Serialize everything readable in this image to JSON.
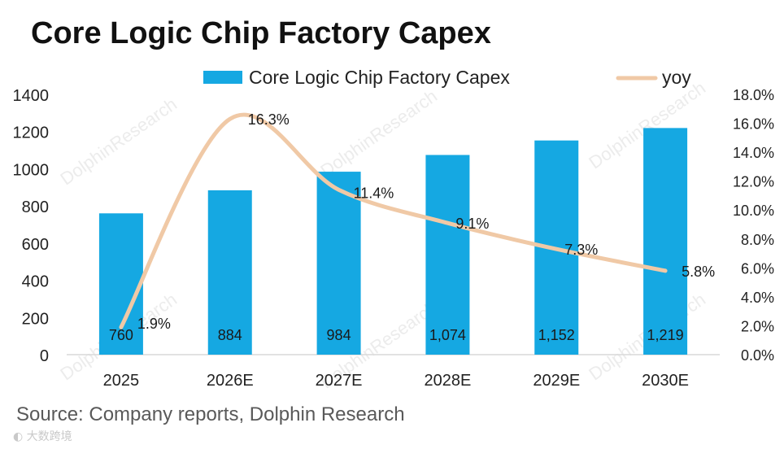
{
  "title": "Core Logic Chip Factory Capex",
  "source": "Source: Company reports, Dolphin Research",
  "watermark": {
    "text": "DolphinResearch",
    "logo": "大数跨境"
  },
  "colors": {
    "bar": "#15a8e2",
    "line": "#f0c9a6",
    "text": "#222222",
    "axis": "#d9d9d9"
  },
  "chart_data": {
    "type": "bar",
    "title": "Core Logic Chip Factory Capex",
    "categories": [
      "2025",
      "2026E",
      "2027E",
      "2028E",
      "2029E",
      "2030E"
    ],
    "series": [
      {
        "name": "Core Logic Chip Factory Capex",
        "type": "bar",
        "axis": "left",
        "values": [
          760,
          884,
          984,
          1074,
          1152,
          1219
        ],
        "labels": [
          "760",
          "884",
          "984",
          "1,074",
          "1,152",
          "1,219"
        ]
      },
      {
        "name": "yoy",
        "type": "line",
        "axis": "right",
        "values": [
          1.9,
          16.3,
          11.4,
          9.1,
          7.3,
          5.8
        ],
        "labels": [
          "1.9%",
          "16.3%",
          "11.4%",
          "9.1%",
          "7.3%",
          "5.8%"
        ]
      }
    ],
    "left_axis": {
      "ylim": [
        0,
        1400
      ],
      "ticks": [
        "0",
        "200",
        "400",
        "600",
        "800",
        "1000",
        "1200",
        "1400"
      ]
    },
    "right_axis": {
      "ylim": [
        0,
        18
      ],
      "ticks": [
        "0.0%",
        "2.0%",
        "4.0%",
        "6.0%",
        "8.0%",
        "10.0%",
        "12.0%",
        "14.0%",
        "16.0%",
        "18.0%"
      ]
    },
    "grid": false,
    "legend": "top"
  }
}
